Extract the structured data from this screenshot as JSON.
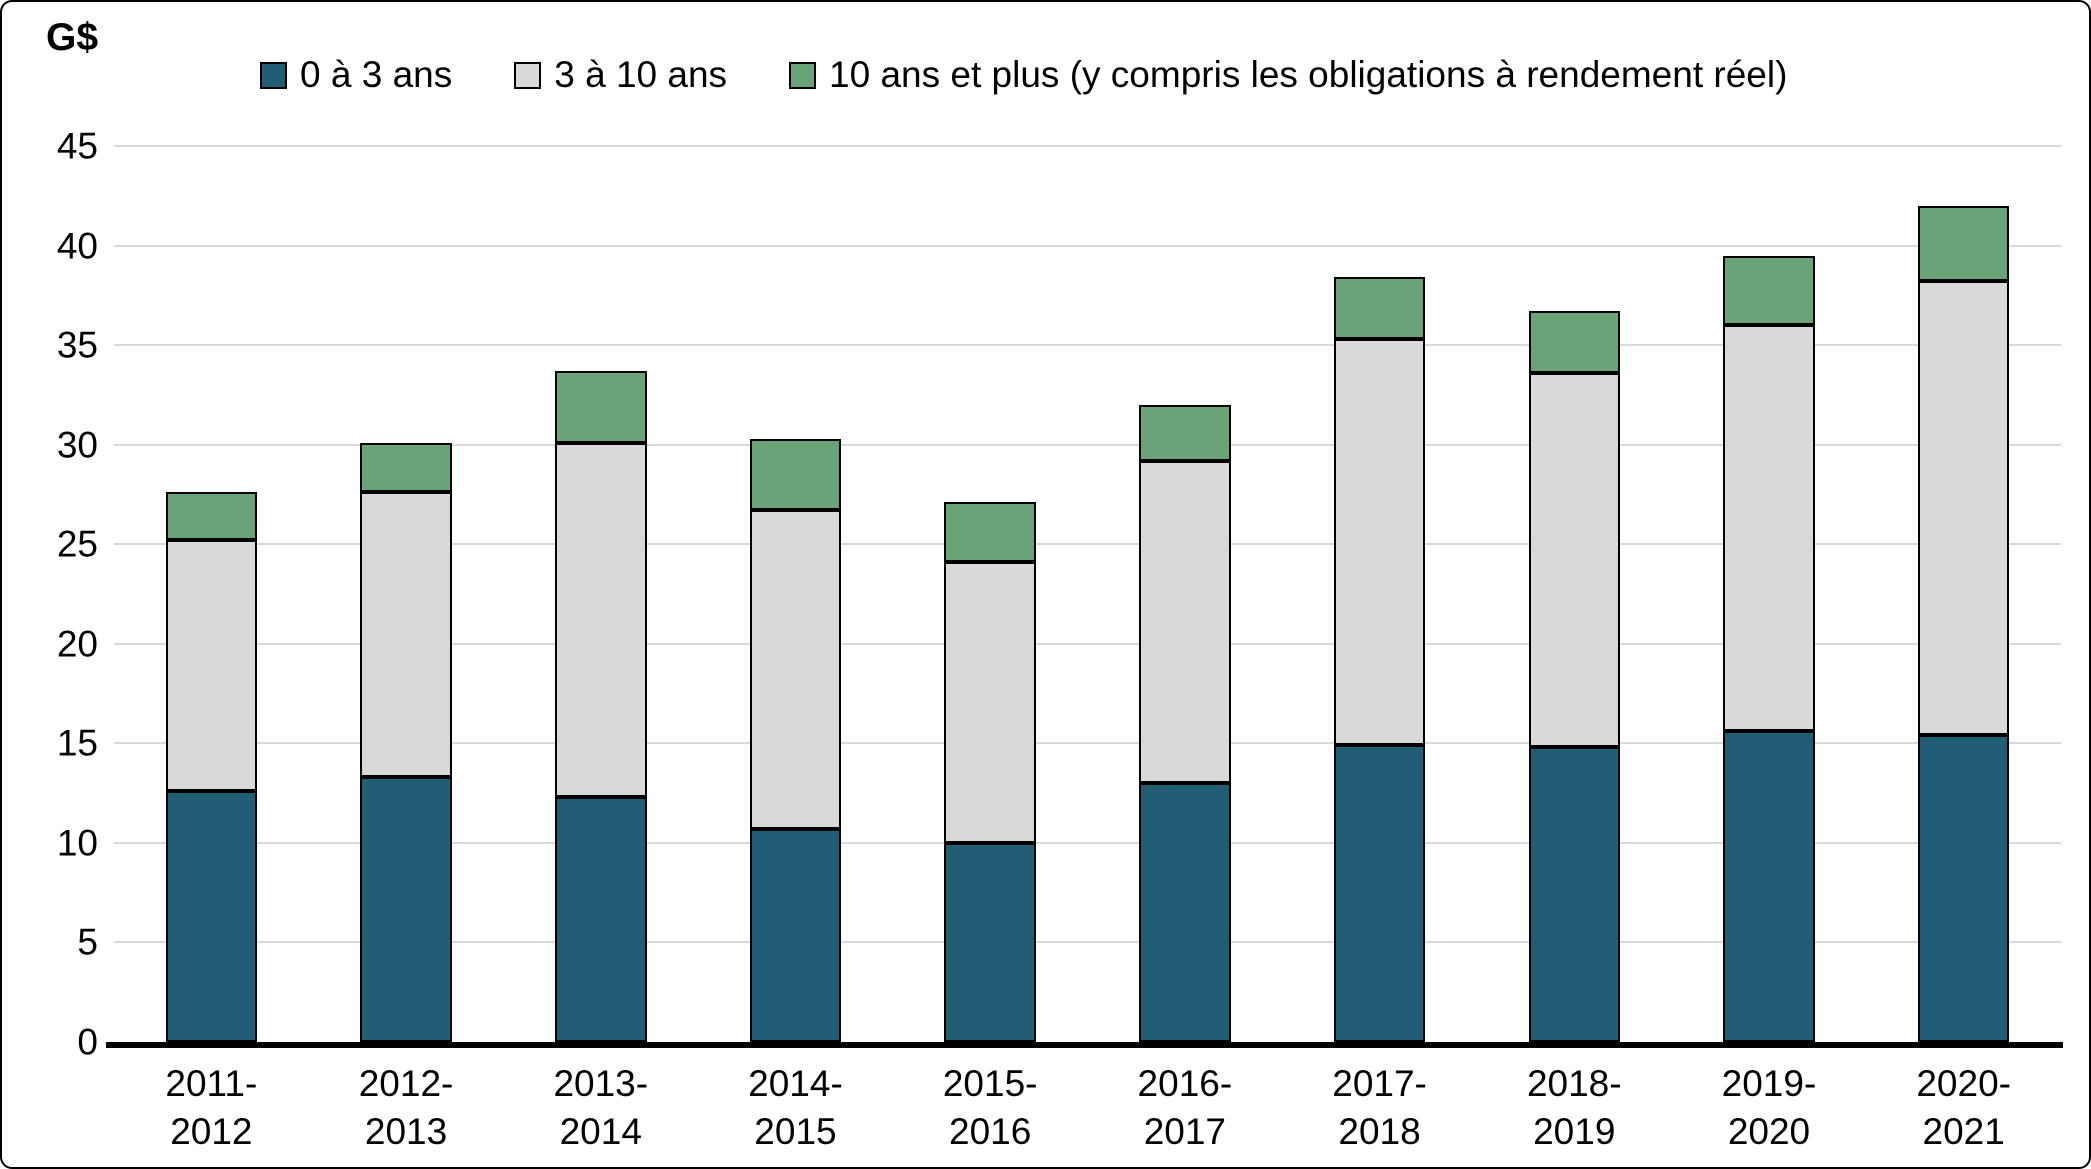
{
  "chart_data": {
    "type": "bar",
    "stacked": true,
    "title": "",
    "xlabel": "",
    "ylabel": "G$",
    "ylim": [
      0,
      45
    ],
    "ytick_step": 5,
    "grid": true,
    "legend_position": "top",
    "categories": [
      "2011-2012",
      "2012-2013",
      "2013-2014",
      "2014-2015",
      "2015-2016",
      "2016-2017",
      "2017-2018",
      "2018-2019",
      "2019-2020",
      "2020-2021"
    ],
    "series": [
      {
        "name": "0 à 3 ans",
        "color": "#215e75",
        "values": [
          12.6,
          13.3,
          12.3,
          10.7,
          10.0,
          13.0,
          14.9,
          14.8,
          15.6,
          15.4
        ]
      },
      {
        "name": "3 à 10 ans",
        "color": "#d9d9d9",
        "values": [
          12.6,
          14.3,
          17.8,
          16.0,
          14.1,
          16.2,
          20.4,
          18.8,
          20.4,
          22.8
        ]
      },
      {
        "name": "10 ans et plus (y compris les obligations à rendement réel)",
        "color": "#69a377",
        "values": [
          2.4,
          2.5,
          3.6,
          3.6,
          3.0,
          2.8,
          3.1,
          3.1,
          3.5,
          3.8
        ]
      }
    ],
    "totals": [
      27.6,
      30.1,
      33.7,
      30.3,
      27.1,
      32.0,
      38.4,
      36.7,
      39.5,
      42.0
    ]
  }
}
